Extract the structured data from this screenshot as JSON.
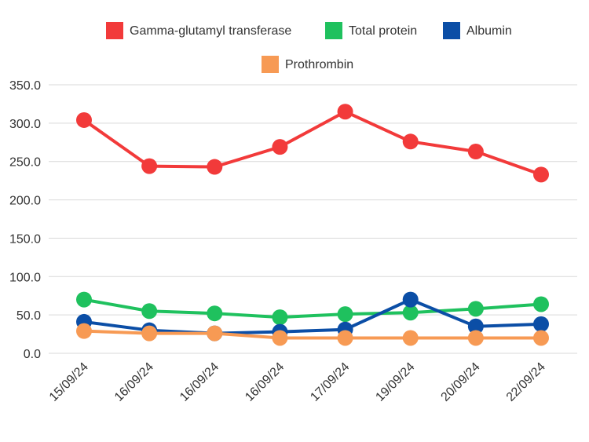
{
  "chart_data": {
    "type": "line",
    "title": "",
    "xlabel": "",
    "ylabel": "",
    "categories": [
      "15/09/24",
      "16/09/24",
      "16/09/24",
      "16/09/24",
      "17/09/24",
      "19/09/24",
      "20/09/24",
      "22/09/24"
    ],
    "ylim": [
      0,
      350
    ],
    "yticks": [
      "0.0",
      "50.0",
      "100.0",
      "150.0",
      "200.0",
      "250.0",
      "300.0",
      "350.0"
    ],
    "grid": true,
    "legend_position": "top",
    "series": [
      {
        "name": "Gamma-glutamyl transferase",
        "color": "#f23a3a",
        "values": [
          304,
          244,
          243,
          269,
          315,
          276,
          263,
          233
        ]
      },
      {
        "name": "Total protein",
        "color": "#1fc15e",
        "values": [
          70,
          55,
          52,
          47,
          51,
          53,
          58,
          64
        ]
      },
      {
        "name": "Albumin",
        "color": "#0b4ea6",
        "values": [
          41,
          30,
          26,
          28,
          31,
          70,
          35,
          38
        ]
      },
      {
        "name": "Prothrombin",
        "color": "#f79a54",
        "values": [
          29,
          26,
          26,
          20,
          20,
          20,
          20,
          20
        ]
      }
    ]
  }
}
